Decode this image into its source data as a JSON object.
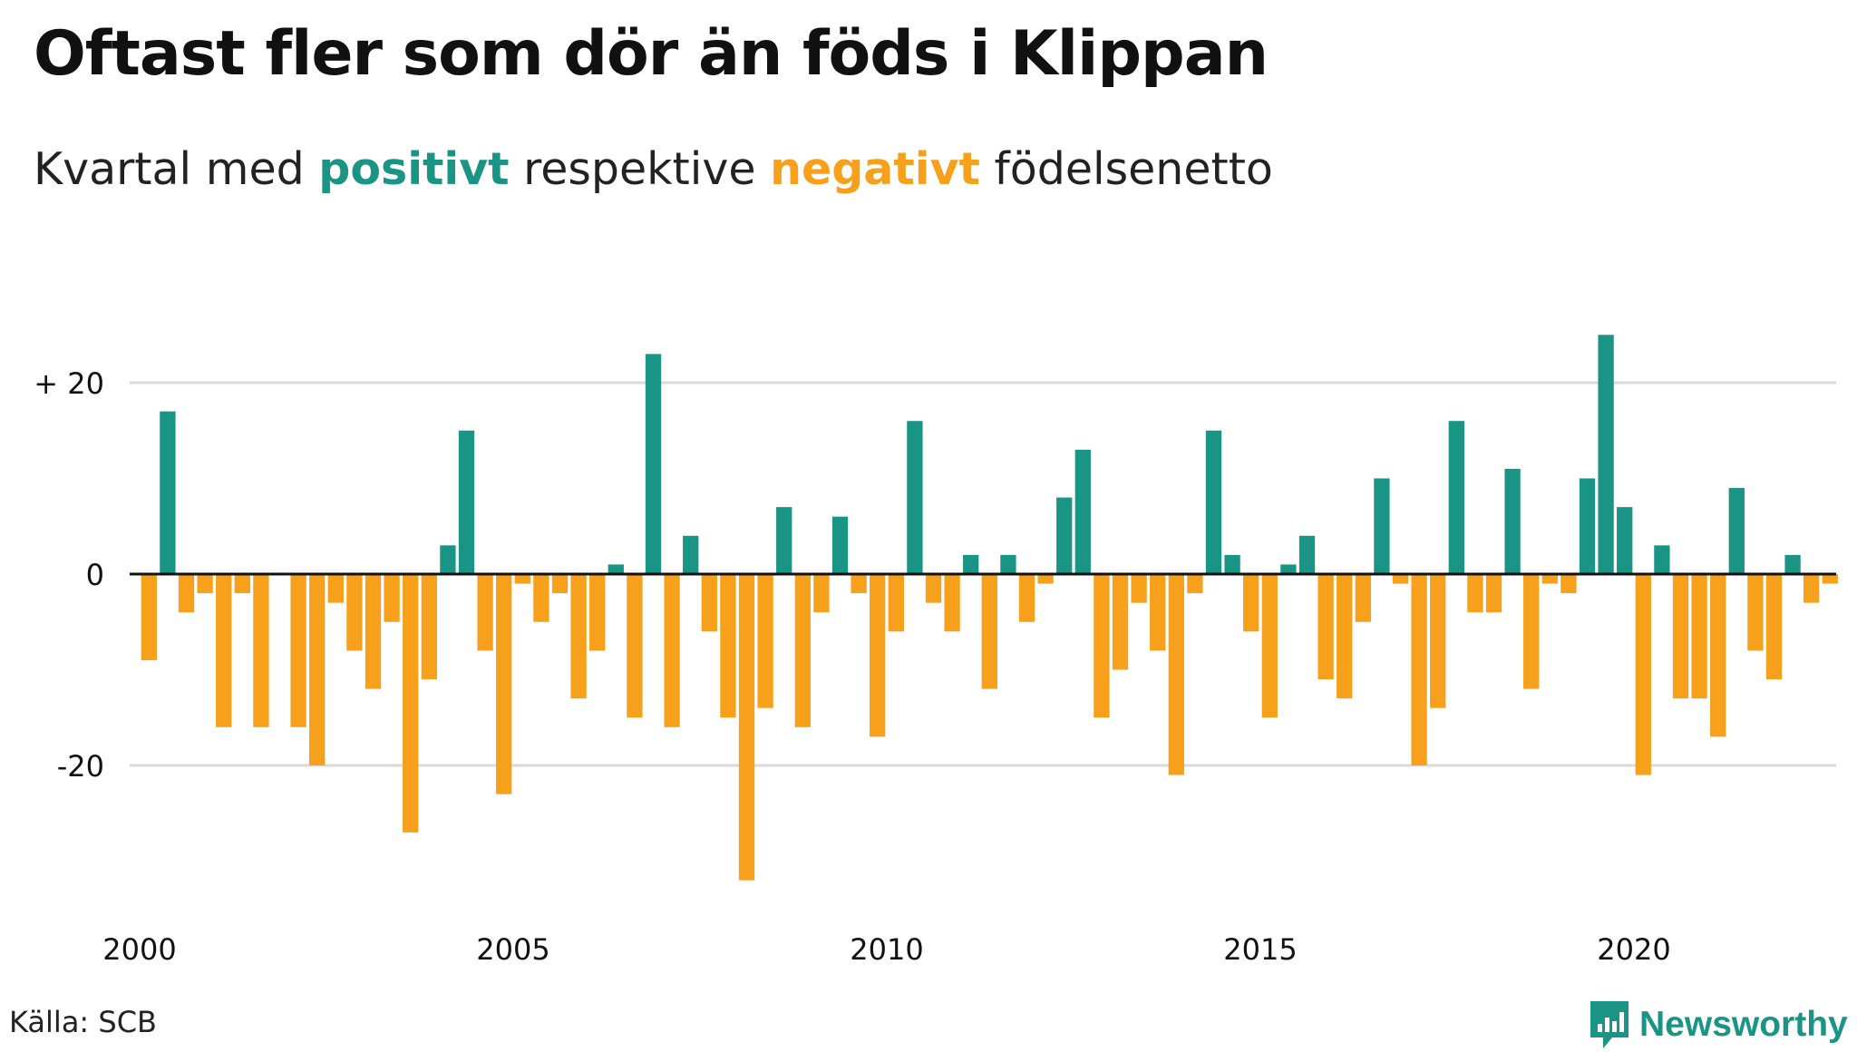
{
  "title": "Oftast fler som dör än föds i Klippan",
  "subtitle": {
    "prefix": "Kvartal med ",
    "positive_word": "positivt",
    "middle": " respektive ",
    "negative_word": "negativt",
    "suffix": " födelsenetto"
  },
  "colors": {
    "positive": "#1a9585",
    "negative": "#f7a01c",
    "grid": "#dadada",
    "axis": "#111111"
  },
  "source": "Källa: SCB",
  "brand": {
    "name": "Newsworthy",
    "icon": "bar-chart-speech-bubble-icon"
  },
  "chart_data": {
    "type": "bar",
    "x_start_year": 2000,
    "periods_per_year": 4,
    "x_tick_labels": [
      "2000",
      "2005",
      "2010",
      "2015",
      "2020"
    ],
    "y_tick_values": [
      20,
      0,
      -20
    ],
    "y_tick_labels": [
      "+ 20",
      "0",
      "-20"
    ],
    "ylim": [
      -33,
      26
    ],
    "grid": true,
    "values": [
      -9,
      17,
      -4,
      -2,
      -16,
      -2,
      -16,
      0,
      -16,
      -20,
      -3,
      -8,
      -12,
      -5,
      -27,
      -11,
      3,
      15,
      -8,
      -23,
      -1,
      -5,
      -2,
      -13,
      -8,
      1,
      -15,
      23,
      -16,
      4,
      -6,
      -15,
      -32,
      -14,
      7,
      -16,
      -4,
      6,
      -2,
      -17,
      -6,
      16,
      -3,
      -6,
      2,
      -12,
      2,
      -5,
      -1,
      8,
      13,
      -15,
      -10,
      -3,
      -8,
      -21,
      -2,
      15,
      2,
      -6,
      -15,
      1,
      4,
      -11,
      -13,
      -5,
      10,
      -1,
      -20,
      -14,
      16,
      -4,
      -4,
      11,
      -12,
      -1,
      -2,
      10,
      25,
      7,
      -21,
      3,
      -13,
      -13,
      -17,
      9,
      -8,
      -11,
      2,
      -3,
      -1
    ]
  }
}
